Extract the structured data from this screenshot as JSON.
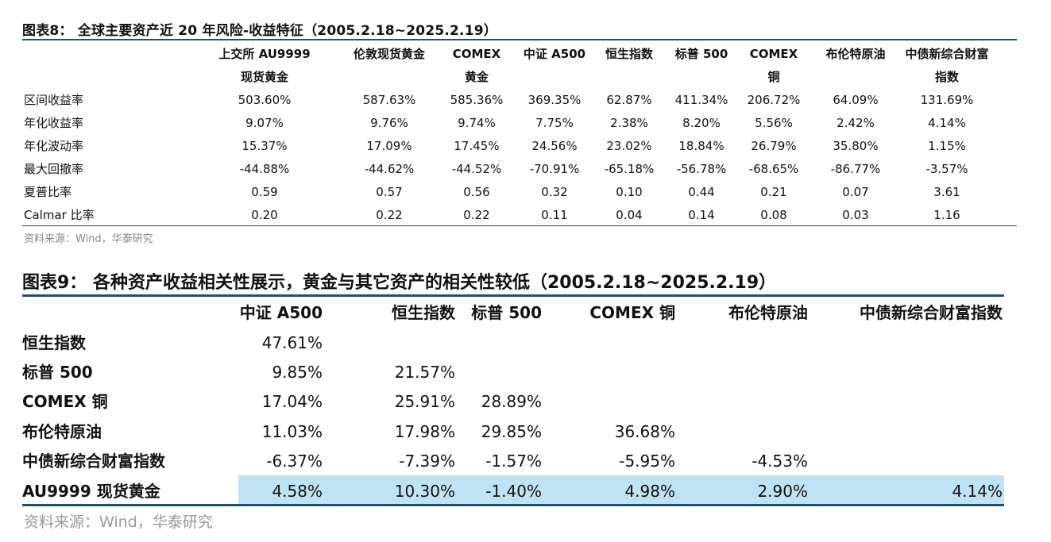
{
  "table8": {
    "title": "图表8： 全球主要资产近 20 年风险-收益特征（2005.2.18~2025.2.19）",
    "columns": [
      {
        "line1": "上交所 AU9999",
        "line2": "现货黄金"
      },
      {
        "line1": "伦敦现货黄金",
        "line2": ""
      },
      {
        "line1": "COMEX",
        "line2": "黄金"
      },
      {
        "line1": "中证 A500",
        "line2": ""
      },
      {
        "line1": "恒生指数",
        "line2": ""
      },
      {
        "line1": "标普 500",
        "line2": ""
      },
      {
        "line1": "COMEX",
        "line2": "铜"
      },
      {
        "line1": "布伦特原油",
        "line2": ""
      },
      {
        "line1": "中债新综合财富",
        "line2": "指数"
      }
    ],
    "rows": [
      {
        "label": "区间收益率",
        "values": [
          "503.60%",
          "587.63%",
          "585.36%",
          "369.35%",
          "62.87%",
          "411.34%",
          "206.72%",
          "64.09%",
          "131.69%"
        ]
      },
      {
        "label": "年化收益率",
        "values": [
          "9.07%",
          "9.76%",
          "9.74%",
          "7.75%",
          "2.38%",
          "8.20%",
          "5.56%",
          "2.42%",
          "4.14%"
        ]
      },
      {
        "label": "年化波动率",
        "values": [
          "15.37%",
          "17.09%",
          "17.45%",
          "24.56%",
          "23.02%",
          "18.84%",
          "26.79%",
          "35.80%",
          "1.15%"
        ]
      },
      {
        "label": "最大回撤率",
        "values": [
          "-44.88%",
          "-44.62%",
          "-44.52%",
          "-70.91%",
          "-65.18%",
          "-56.78%",
          "-68.65%",
          "-86.77%",
          "-3.57%"
        ]
      },
      {
        "label": "夏普比率",
        "values": [
          "0.59",
          "0.57",
          "0.56",
          "0.32",
          "0.10",
          "0.44",
          "0.21",
          "0.07",
          "3.61"
        ]
      },
      {
        "label": "Calmar 比率",
        "values": [
          "0.20",
          "0.22",
          "0.22",
          "0.11",
          "0.04",
          "0.14",
          "0.08",
          "0.03",
          "1.16"
        ]
      }
    ],
    "source": "资料来源：Wind，华泰研究"
  },
  "table9": {
    "title": "图表9： 各种资产收益相关性展示，黄金与其它资产的相关性较低（2005.2.18~2025.2.19）",
    "columns": [
      "中证 A500",
      "恒生指数",
      "标普 500",
      "COMEX 铜",
      "布伦特原油",
      "中债新综合财富指数"
    ],
    "rows": [
      {
        "label": "恒生指数",
        "values": [
          "47.61%",
          "",
          "",
          "",
          "",
          ""
        ]
      },
      {
        "label": "标普 500",
        "values": [
          "9.85%",
          "21.57%",
          "",
          "",
          "",
          ""
        ]
      },
      {
        "label": "COMEX 铜",
        "values": [
          "17.04%",
          "25.91%",
          "28.89%",
          "",
          "",
          ""
        ]
      },
      {
        "label": "布伦特原油",
        "values": [
          "11.03%",
          "17.98%",
          "29.85%",
          "36.68%",
          "",
          ""
        ]
      },
      {
        "label": "中债新综合财富指数",
        "values": [
          "-6.37%",
          "-7.39%",
          "-1.57%",
          "-5.95%",
          "-4.53%",
          ""
        ]
      },
      {
        "label": "AU9999 现货黄金",
        "values": [
          "4.58%",
          "10.30%",
          "-1.40%",
          "4.98%",
          "2.90%",
          "4.14%"
        ]
      }
    ],
    "highlight_row_color": "#bfe3f5",
    "rule_color": "#1f4e79",
    "source": "资料来源：Wind，华泰研究"
  }
}
